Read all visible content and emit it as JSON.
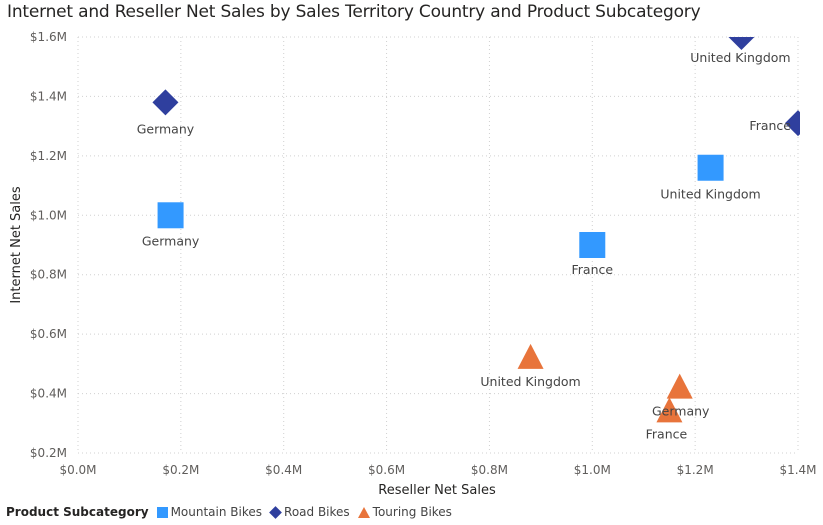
{
  "chart_data": {
    "type": "scatter",
    "title": "Internet and Reseller Net Sales by Sales Territory Country and Product Subcategory",
    "xlabel": "Reseller Net Sales",
    "ylabel": "Internet Net Sales",
    "xlim": [
      0,
      1.4
    ],
    "ylim": [
      0.2,
      1.6
    ],
    "x_unit": "M",
    "y_unit": "M",
    "x_ticks": [
      "$0.0M",
      "$0.2M",
      "$0.4M",
      "$0.6M",
      "$0.8M",
      "$1.0M",
      "$1.2M",
      "$1.4M"
    ],
    "y_ticks": [
      "$0.2M",
      "$0.4M",
      "$0.6M",
      "$0.8M",
      "$1.0M",
      "$1.2M",
      "$1.4M",
      "$1.6M"
    ],
    "grid": true,
    "legend_title": "Product Subcategory",
    "legend_position": "bottom-left",
    "series": [
      {
        "name": "Mountain Bikes",
        "marker": "square",
        "color": "#3399ff",
        "points": [
          {
            "label": "Germany",
            "x": 0.18,
            "y": 1.0
          },
          {
            "label": "France",
            "x": 1.0,
            "y": 0.9
          },
          {
            "label": "United Kingdom",
            "x": 1.23,
            "y": 1.16
          }
        ]
      },
      {
        "name": "Road Bikes",
        "marker": "diamond",
        "color": "#2f3f9e",
        "points": [
          {
            "label": "Germany",
            "x": 0.17,
            "y": 1.38
          },
          {
            "label": "France",
            "x": 1.4,
            "y": 1.31
          },
          {
            "label": "United Kingdom",
            "x": 1.29,
            "y": 1.6
          }
        ]
      },
      {
        "name": "Touring Bikes",
        "marker": "triangle",
        "color": "#e8743b",
        "points": [
          {
            "label": "United Kingdom",
            "x": 0.88,
            "y": 0.52
          },
          {
            "label": "Germany",
            "x": 1.17,
            "y": 0.42
          },
          {
            "label": "France",
            "x": 1.15,
            "y": 0.34
          }
        ]
      }
    ]
  }
}
